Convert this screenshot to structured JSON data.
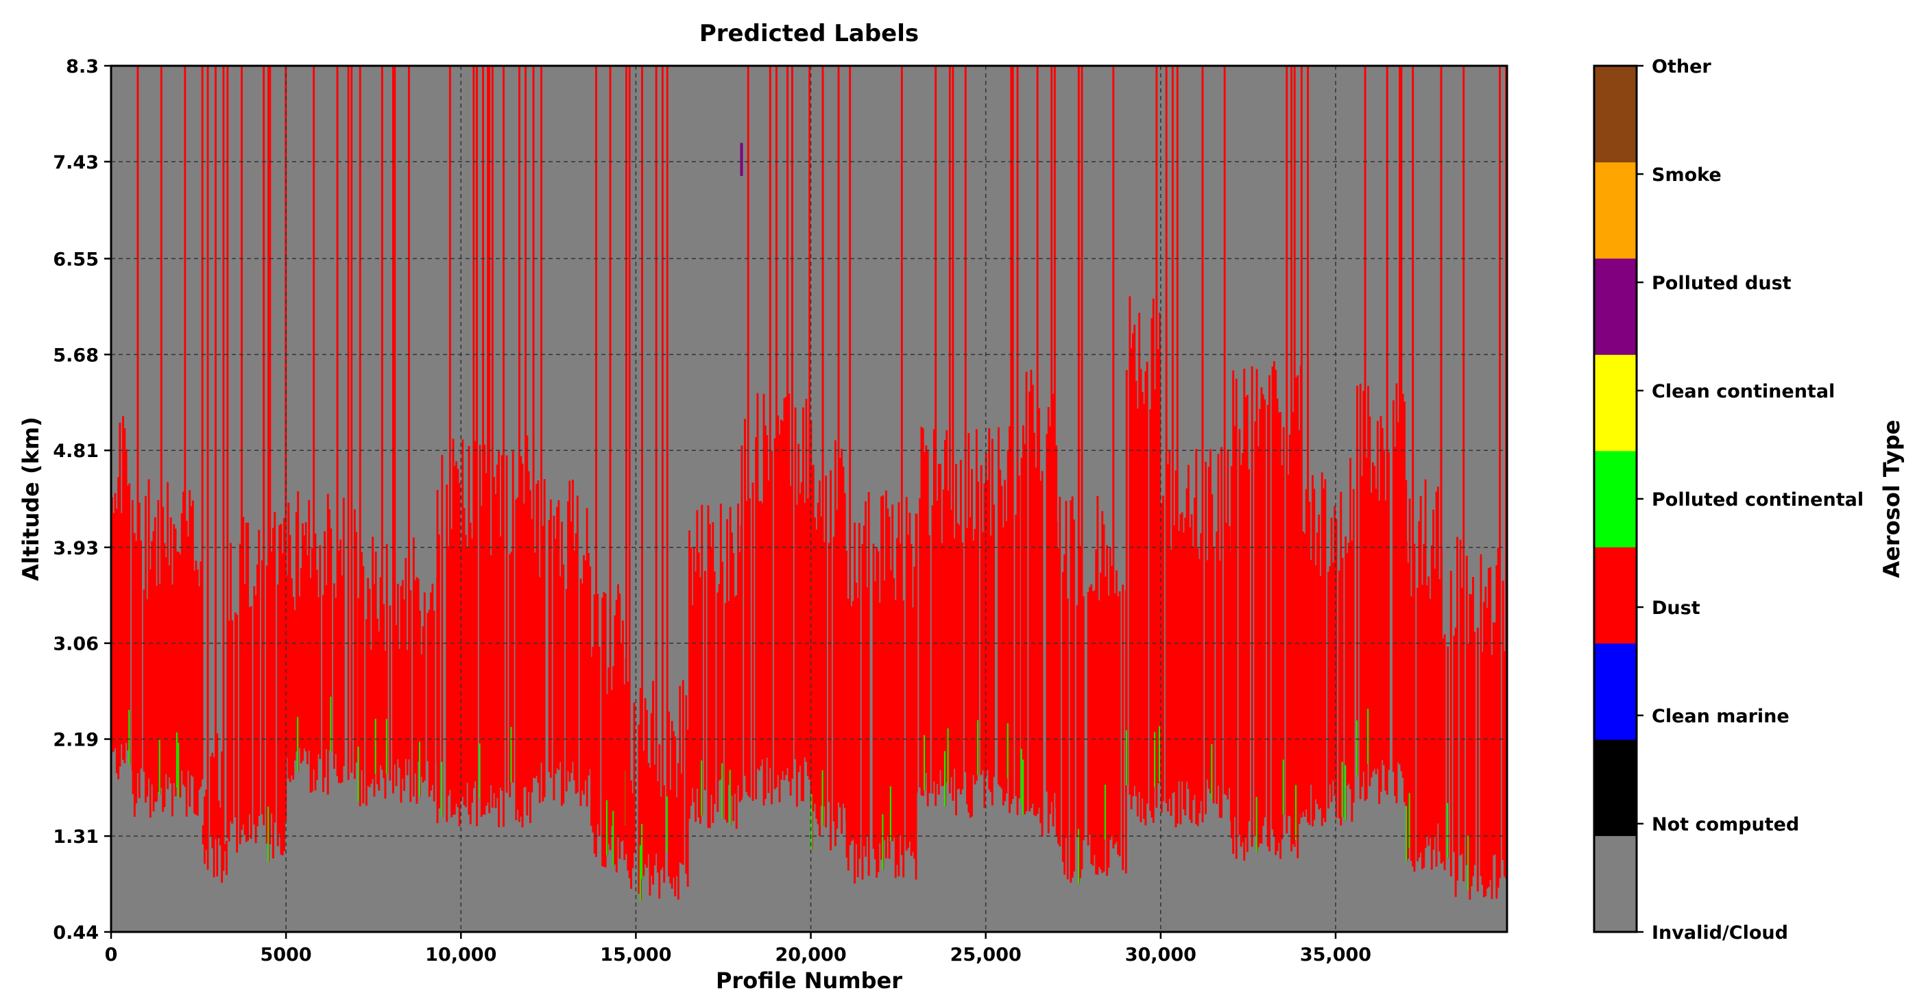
{
  "chart_data": {
    "type": "heatmap",
    "title": "Predicted Labels",
    "xlabel": "Profile Number",
    "ylabel": "Altitude (km)",
    "xlim": [
      0,
      39900
    ],
    "ylim": [
      0.44,
      8.3
    ],
    "x_ticks": [
      {
        "value": 0,
        "label": "0"
      },
      {
        "value": 5000,
        "label": "5000"
      },
      {
        "value": 10000,
        "label": "10,000"
      },
      {
        "value": 15000,
        "label": "15,000"
      },
      {
        "value": 20000,
        "label": "20,000"
      },
      {
        "value": 25000,
        "label": "25,000"
      },
      {
        "value": 30000,
        "label": "30,000"
      },
      {
        "value": 35000,
        "label": "35,000"
      }
    ],
    "y_ticks": [
      {
        "value": 0.44,
        "label": "0.44"
      },
      {
        "value": 1.31,
        "label": "1.31"
      },
      {
        "value": 2.19,
        "label": "2.19"
      },
      {
        "value": 3.06,
        "label": "3.06"
      },
      {
        "value": 3.93,
        "label": "3.93"
      },
      {
        "value": 4.81,
        "label": "4.81"
      },
      {
        "value": 5.68,
        "label": "5.68"
      },
      {
        "value": 6.55,
        "label": "6.55"
      },
      {
        "value": 7.43,
        "label": "7.43"
      },
      {
        "value": 8.3,
        "label": "8.3"
      }
    ],
    "grid": true,
    "colorbar": {
      "label": "Aerosol Type",
      "classes": [
        {
          "name": "Invalid/Cloud",
          "color": "#808080"
        },
        {
          "name": "Not computed",
          "color": "#000000"
        },
        {
          "name": "Clean marine",
          "color": "#0000ff"
        },
        {
          "name": "Dust",
          "color": "#ff0000"
        },
        {
          "name": "Polluted continental",
          "color": "#00ff00"
        },
        {
          "name": "Clean continental",
          "color": "#ffff00"
        },
        {
          "name": "Polluted dust",
          "color": "#800080"
        },
        {
          "name": "Smoke",
          "color": "#ffa500"
        },
        {
          "name": "Other",
          "color": "#8b4513"
        }
      ]
    },
    "dust_layer_bands": [
      {
        "x": [
          0,
          600
        ],
        "alt": [
          2.0,
          4.6
        ]
      },
      {
        "x": [
          600,
          2600
        ],
        "alt": [
          1.7,
          4.0
        ]
      },
      {
        "x": [
          2600,
          3300
        ],
        "alt": [
          1.1,
          1.7
        ]
      },
      {
        "x": [
          3300,
          5000
        ],
        "alt": [
          1.3,
          3.8
        ]
      },
      {
        "x": [
          5000,
          7000
        ],
        "alt": [
          1.9,
          3.9
        ]
      },
      {
        "x": [
          7000,
          9300
        ],
        "alt": [
          1.8,
          3.5
        ]
      },
      {
        "x": [
          9300,
          12000
        ],
        "alt": [
          1.6,
          4.4
        ]
      },
      {
        "x": [
          12000,
          13700
        ],
        "alt": [
          1.8,
          4.0
        ]
      },
      {
        "x": [
          13700,
          14700
        ],
        "alt": [
          1.2,
          3.1
        ]
      },
      {
        "x": [
          14700,
          16500
        ],
        "alt": [
          0.95,
          2.2
        ]
      },
      {
        "x": [
          16500,
          18000
        ],
        "alt": [
          1.6,
          3.9
        ]
      },
      {
        "x": [
          18000,
          20000
        ],
        "alt": [
          1.8,
          4.8
        ]
      },
      {
        "x": [
          20000,
          21000
        ],
        "alt": [
          1.4,
          4.4
        ]
      },
      {
        "x": [
          21000,
          23000
        ],
        "alt": [
          1.1,
          3.9
        ]
      },
      {
        "x": [
          23000,
          26000
        ],
        "alt": [
          1.7,
          4.5
        ]
      },
      {
        "x": [
          26000,
          27000
        ],
        "alt": [
          1.5,
          5.0
        ]
      },
      {
        "x": [
          27000,
          29000
        ],
        "alt": [
          1.1,
          3.9
        ]
      },
      {
        "x": [
          29000,
          30000
        ],
        "alt": [
          1.6,
          5.7
        ]
      },
      {
        "x": [
          30000,
          32000
        ],
        "alt": [
          1.6,
          4.3
        ]
      },
      {
        "x": [
          32000,
          34000
        ],
        "alt": [
          1.3,
          5.1
        ]
      },
      {
        "x": [
          34000,
          35500
        ],
        "alt": [
          1.6,
          4.2
        ]
      },
      {
        "x": [
          35500,
          37000
        ],
        "alt": [
          1.8,
          4.9
        ]
      },
      {
        "x": [
          37000,
          38000
        ],
        "alt": [
          1.2,
          4.0
        ]
      },
      {
        "x": [
          38000,
          39900
        ],
        "alt": [
          0.95,
          3.5
        ]
      }
    ]
  }
}
